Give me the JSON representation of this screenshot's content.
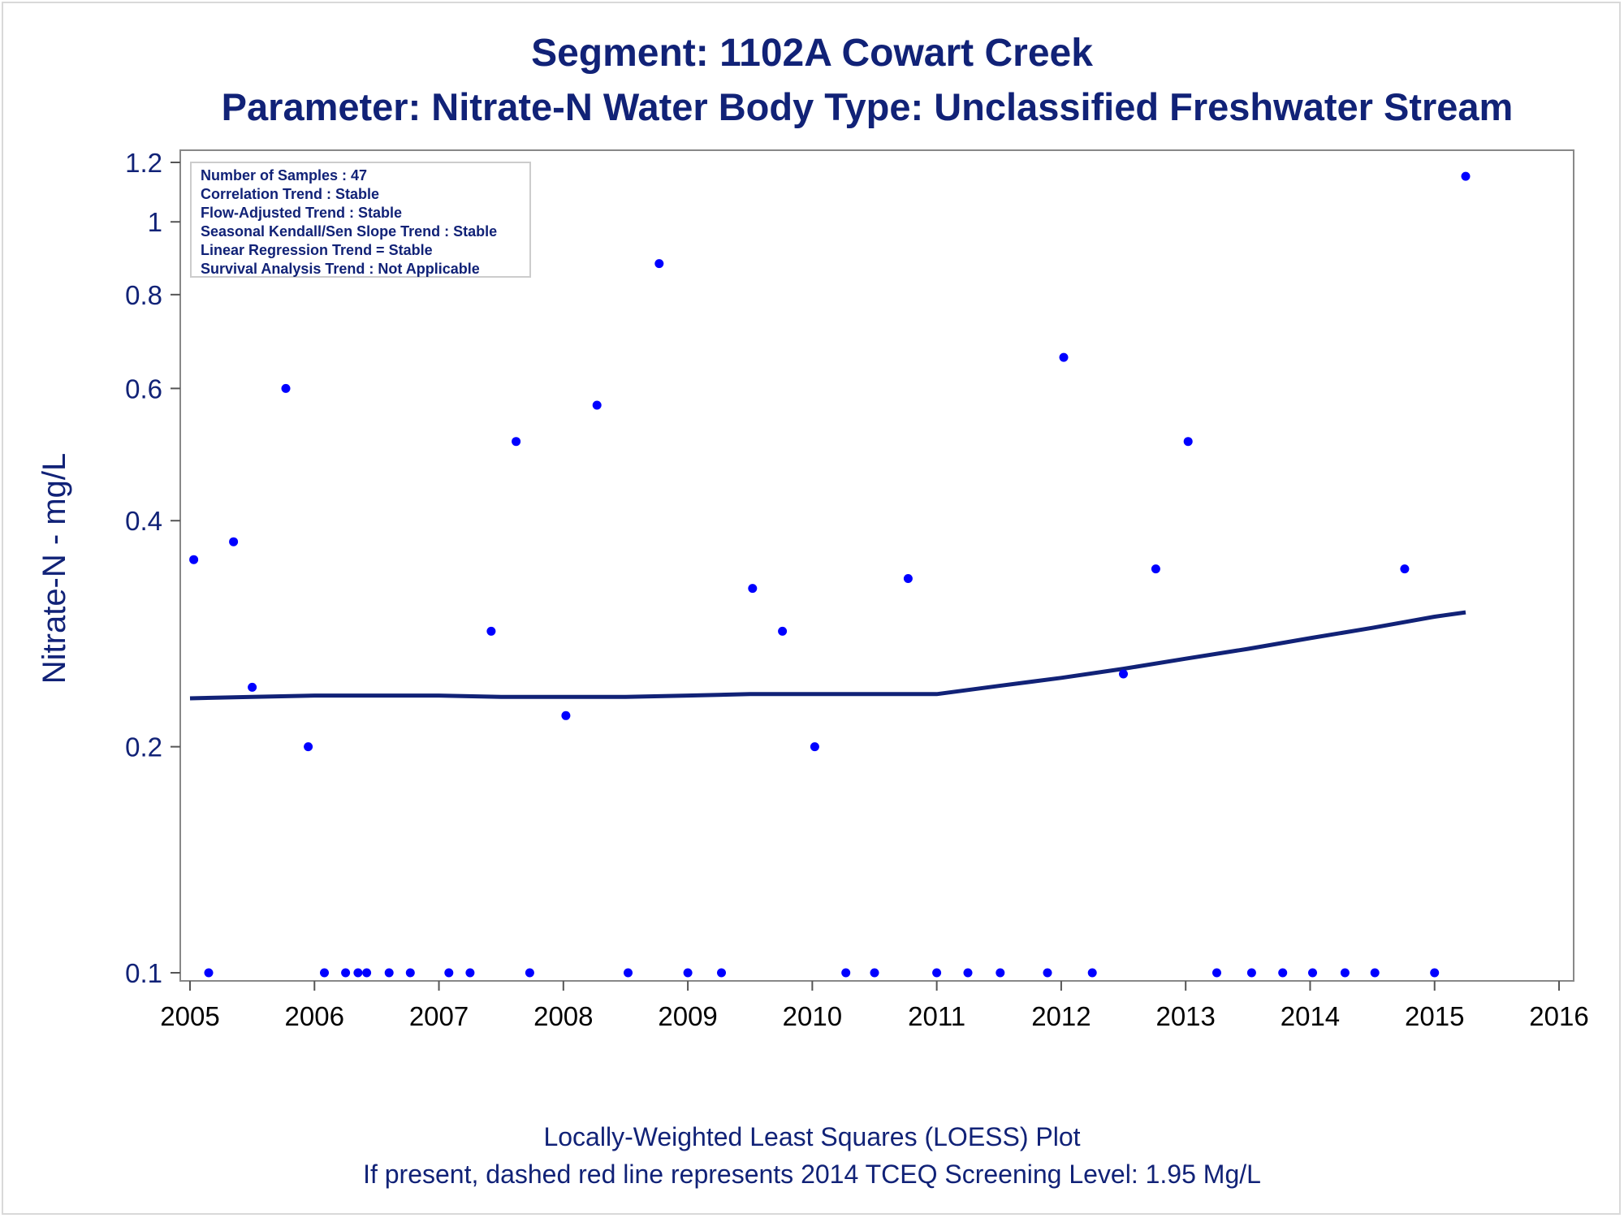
{
  "chart_data": {
    "type": "scatter",
    "title": "Segment: 1102A  Cowart Creek",
    "subtitle": "Parameter: Nitrate-N   Water Body Type: Unclassified Freshwater Stream",
    "xlabel": "",
    "ylabel": "Nitrate-N - mg/L",
    "yscale": "log",
    "xlim": [
      2005,
      2016
    ],
    "ylim": [
      0.1,
      1.2
    ],
    "x_ticks": [
      "2005",
      "2006",
      "2007",
      "2008",
      "2009",
      "2010",
      "2011",
      "2012",
      "2013",
      "2014",
      "2015",
      "2016"
    ],
    "y_ticks": [
      "0.1",
      "0.2",
      "0.4",
      "0.6",
      "0.8",
      "1",
      "1.2"
    ],
    "grid": false,
    "colors": {
      "points": "#0000ff",
      "loess": "#112277",
      "text": "#112277",
      "axis": "#888888"
    },
    "stats_box": {
      "position": "top-left",
      "lines": [
        "Number of Samples : 47",
        "Correlation Trend : Stable",
        "Flow-Adjusted Trend : Stable",
        "Seasonal Kendall/Sen Slope Trend : Stable",
        "Linear Regression Trend = Stable",
        "Survival Analysis Trend : Not Applicable"
      ]
    },
    "footnotes": [
      "Locally-Weighted Least Squares (LOESS) Plot",
      "If present, dashed red line represents 2014 TCEQ Screening Level: 1.95 Mg/L"
    ],
    "series": [
      {
        "kind": "points",
        "x": [
          2005.03,
          2005.15,
          2005.35,
          2005.5,
          2005.77,
          2005.95,
          2006.08,
          2006.25,
          2006.35,
          2006.42,
          2006.6,
          2006.77,
          2007.08,
          2007.25,
          2007.42,
          2007.62,
          2007.73,
          2008.02,
          2008.27,
          2008.52,
          2008.77,
          2009.0,
          2009.27,
          2009.52,
          2009.76,
          2010.02,
          2010.27,
          2010.5,
          2010.77,
          2011.0,
          2011.25,
          2011.51,
          2011.89,
          2012.02,
          2012.25,
          2012.5,
          2012.76,
          2013.02,
          2013.25,
          2013.53,
          2013.78,
          2014.02,
          2014.28,
          2014.52,
          2014.76,
          2015.0,
          2015.25
        ],
        "y": [
          0.355,
          0.1,
          0.375,
          0.24,
          0.6,
          0.2,
          0.1,
          0.1,
          0.1,
          0.1,
          0.1,
          0.1,
          0.1,
          0.1,
          0.285,
          0.51,
          0.1,
          0.22,
          0.57,
          0.1,
          0.88,
          0.1,
          0.1,
          0.325,
          0.285,
          0.2,
          0.1,
          0.1,
          0.335,
          0.1,
          0.1,
          0.1,
          0.1,
          0.66,
          0.1,
          0.25,
          0.345,
          0.51,
          0.1,
          0.1,
          0.1,
          0.1,
          0.1,
          0.1,
          0.345,
          0.1,
          1.15
        ]
      },
      {
        "kind": "loess",
        "x": [
          2005.0,
          2005.5,
          2006.0,
          2006.5,
          2007.0,
          2007.5,
          2008.0,
          2008.5,
          2009.0,
          2009.5,
          2010.0,
          2010.5,
          2011.0,
          2011.5,
          2012.0,
          2012.5,
          2013.0,
          2013.5,
          2014.0,
          2014.5,
          2015.0,
          2015.25
        ],
        "y": [
          0.232,
          0.233,
          0.234,
          0.234,
          0.234,
          0.233,
          0.233,
          0.233,
          0.234,
          0.235,
          0.235,
          0.235,
          0.235,
          0.241,
          0.247,
          0.254,
          0.262,
          0.27,
          0.279,
          0.288,
          0.298,
          0.302
        ]
      }
    ]
  }
}
